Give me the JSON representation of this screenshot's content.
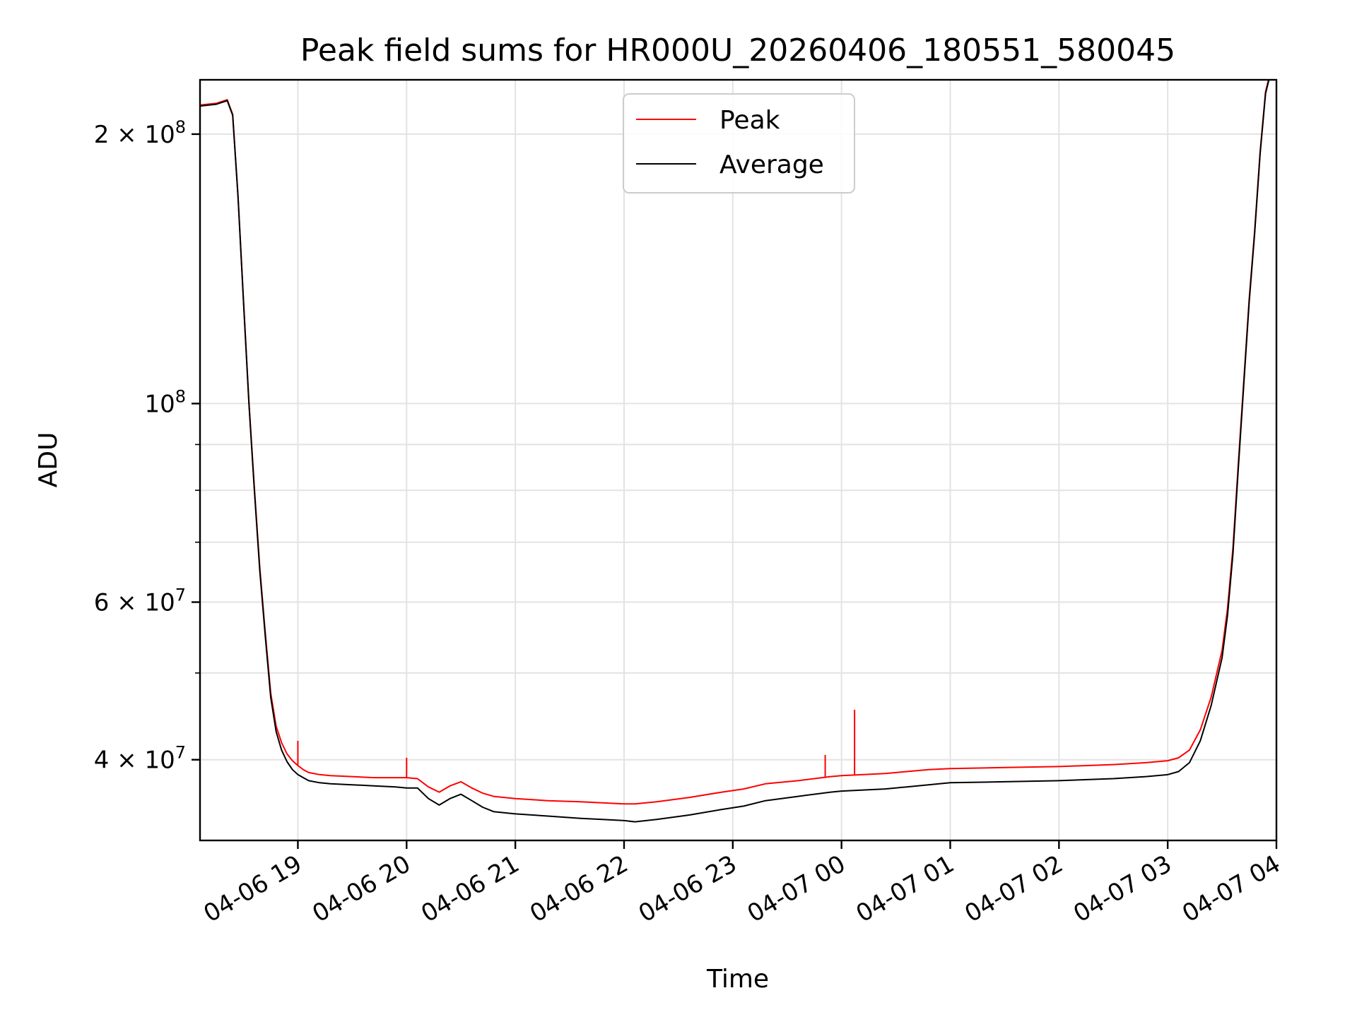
{
  "chart_data": {
    "type": "line",
    "title": "Peak field sums for HR000U_20260406_180551_580045",
    "xlabel": "Time",
    "ylabel": "ADU",
    "yscale": "log",
    "ylim": [
      32500000,
      230000000
    ],
    "xlim": [
      -0.9,
      9.0
    ],
    "x_unit": "hours after 04-06 19:00",
    "grid": true,
    "legend": {
      "placement": "top-center",
      "entries": [
        "Peak",
        "Average"
      ]
    },
    "x_ticks": [
      {
        "value": 0,
        "label": "04-06 19"
      },
      {
        "value": 1,
        "label": "04-06 20"
      },
      {
        "value": 2,
        "label": "04-06 21"
      },
      {
        "value": 3,
        "label": "04-06 22"
      },
      {
        "value": 4,
        "label": "04-06 23"
      },
      {
        "value": 5,
        "label": "04-07 00"
      },
      {
        "value": 6,
        "label": "04-07 01"
      },
      {
        "value": 7,
        "label": "04-07 02"
      },
      {
        "value": 8,
        "label": "04-07 03"
      },
      {
        "value": 9,
        "label": "04-07 04"
      }
    ],
    "y_ticks": [
      {
        "value": 40000000,
        "mantissa": "4",
        "exp": "7",
        "label": "4 × 10^7"
      },
      {
        "value": 60000000,
        "mantissa": "6",
        "exp": "7",
        "label": "6 × 10^7"
      },
      {
        "value": 100000000,
        "mantissa": "",
        "exp": "8",
        "label": "10^8"
      },
      {
        "value": 200000000,
        "mantissa": "2",
        "exp": "8",
        "label": "2 × 10^8"
      }
    ],
    "y_minor_ticks": [
      30000000,
      50000000,
      70000000,
      80000000,
      90000000
    ],
    "series": [
      {
        "name": "Average",
        "color": "#000000",
        "x": [
          -0.9,
          -0.75,
          -0.65,
          -0.6,
          -0.55,
          -0.5,
          -0.45,
          -0.4,
          -0.35,
          -0.3,
          -0.25,
          -0.2,
          -0.15,
          -0.1,
          -0.05,
          0.0,
          0.05,
          0.1,
          0.2,
          0.3,
          0.5,
          0.7,
          0.9,
          1.0,
          1.1,
          1.2,
          1.3,
          1.4,
          1.5,
          1.6,
          1.7,
          1.8,
          2.0,
          2.3,
          2.6,
          2.8,
          3.0,
          3.1,
          3.3,
          3.6,
          3.9,
          4.1,
          4.3,
          4.6,
          4.9,
          5.0,
          5.2,
          5.4,
          5.6,
          5.8,
          6.0,
          6.5,
          7.0,
          7.5,
          7.8,
          8.0,
          8.1,
          8.2,
          8.3,
          8.4,
          8.5,
          8.55,
          8.6,
          8.65,
          8.7,
          8.75,
          8.8,
          8.85,
          8.9,
          8.95
        ],
        "y": [
          215000000,
          216000000,
          218000000,
          210000000,
          170000000,
          130000000,
          100000000,
          80000000,
          65000000,
          55000000,
          47000000,
          43000000,
          41000000,
          39800000,
          39000000,
          38500000,
          38200000,
          37900000,
          37700000,
          37600000,
          37500000,
          37400000,
          37300000,
          37200000,
          37200000,
          36200000,
          35600000,
          36200000,
          36600000,
          36000000,
          35400000,
          35000000,
          34800000,
          34600000,
          34400000,
          34300000,
          34200000,
          34100000,
          34300000,
          34700000,
          35200000,
          35500000,
          36000000,
          36400000,
          36800000,
          36900000,
          37000000,
          37100000,
          37300000,
          37500000,
          37700000,
          37800000,
          37900000,
          38100000,
          38300000,
          38500000,
          38800000,
          39700000,
          42000000,
          46000000,
          52000000,
          58000000,
          68000000,
          85000000,
          105000000,
          130000000,
          155000000,
          190000000,
          222000000,
          235000000
        ]
      },
      {
        "name": "Peak",
        "color": "#ff0000",
        "x": [
          -0.9,
          -0.75,
          -0.65,
          -0.6,
          -0.55,
          -0.5,
          -0.45,
          -0.4,
          -0.35,
          -0.3,
          -0.25,
          -0.2,
          -0.15,
          -0.1,
          -0.05,
          0.0,
          0.05,
          0.1,
          0.2,
          0.3,
          0.5,
          0.7,
          0.9,
          1.0,
          1.1,
          1.2,
          1.3,
          1.4,
          1.5,
          1.6,
          1.7,
          1.8,
          2.0,
          2.3,
          2.6,
          2.8,
          3.0,
          3.1,
          3.3,
          3.6,
          3.9,
          4.1,
          4.3,
          4.6,
          4.9,
          5.0,
          5.2,
          5.4,
          5.6,
          5.8,
          6.0,
          6.5,
          7.0,
          7.5,
          7.8,
          8.0,
          8.1,
          8.2,
          8.3,
          8.4,
          8.5,
          8.55,
          8.6,
          8.65,
          8.7,
          8.75,
          8.8,
          8.85,
          8.9,
          8.95
        ],
        "y": [
          215500000,
          216500000,
          218500000,
          210500000,
          170500000,
          130500000,
          100500000,
          80500000,
          65500000,
          55500000,
          47500000,
          43600000,
          41800000,
          40600000,
          39900000,
          39400000,
          39000000,
          38700000,
          38500000,
          38400000,
          38300000,
          38200000,
          38200000,
          38200000,
          38100000,
          37300000,
          36800000,
          37400000,
          37800000,
          37200000,
          36700000,
          36400000,
          36200000,
          36000000,
          35900000,
          35800000,
          35700000,
          35700000,
          35900000,
          36300000,
          36800000,
          37100000,
          37600000,
          37900000,
          38300000,
          38400000,
          38500000,
          38600000,
          38800000,
          39000000,
          39100000,
          39200000,
          39300000,
          39500000,
          39700000,
          39900000,
          40200000,
          41000000,
          43200000,
          47000000,
          53000000,
          59000000,
          69000000,
          86000000,
          106000000,
          131000000,
          156000000,
          191000000,
          223000000,
          236000000
        ]
      }
    ],
    "notable_spikes": [
      {
        "series": "Peak",
        "x": 5.12,
        "y": 45500000
      },
      {
        "series": "Peak",
        "x": 4.85,
        "y": 40500000
      },
      {
        "series": "Peak",
        "x": 1.0,
        "y": 40200000
      },
      {
        "series": "Peak",
        "x": 0.0,
        "y": 42000000
      }
    ]
  }
}
